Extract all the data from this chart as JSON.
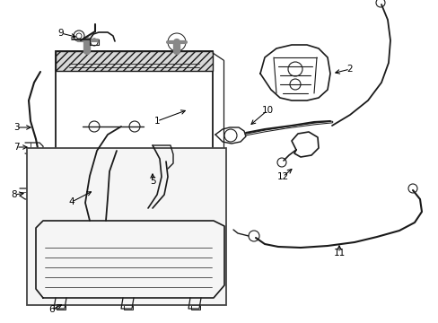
{
  "bg_color": "#ffffff",
  "line_color": "#1a1a1a",
  "label_color": "#000000",
  "figsize": [
    4.89,
    3.6
  ],
  "dpi": 100,
  "xlim": [
    0,
    489
  ],
  "ylim": [
    0,
    360
  ]
}
